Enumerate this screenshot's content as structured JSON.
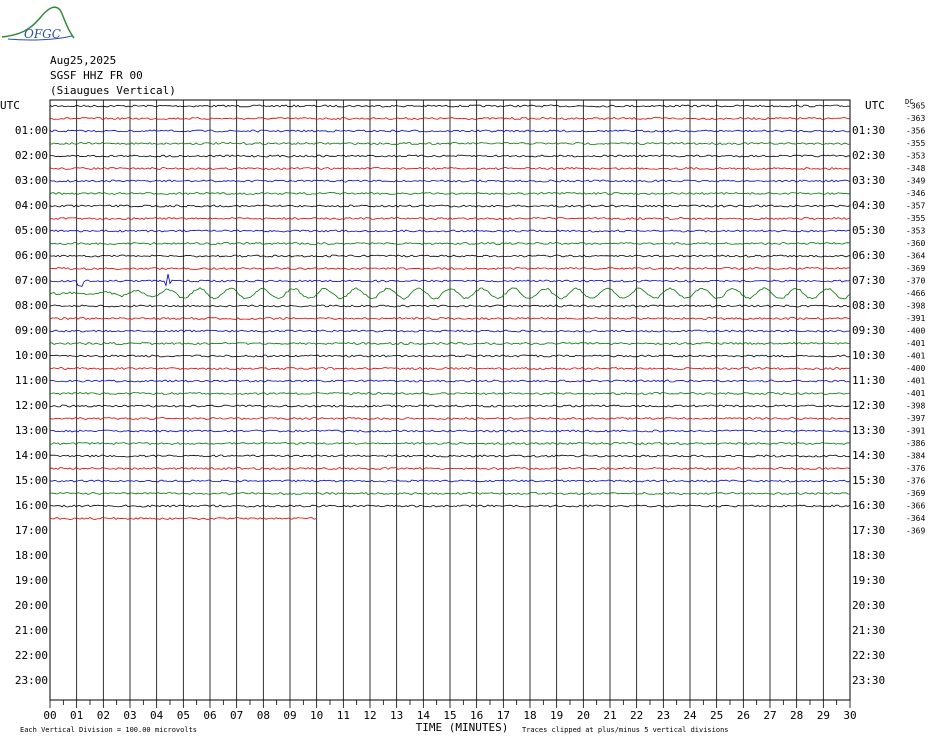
{
  "logo": "OFGC",
  "header": {
    "date": "Aug25,2025",
    "station": "SGSF HHZ FR 00",
    "location": "(Siaugues Vertical)"
  },
  "axes": {
    "left_title": "UTC",
    "right_title": "UTC",
    "offset_title": "DC",
    "left_labels": [
      "01:00",
      "02:00",
      "03:00",
      "04:00",
      "05:00",
      "06:00",
      "07:00",
      "08:00",
      "09:00",
      "10:00",
      "11:00",
      "12:00",
      "13:00",
      "14:00",
      "15:00",
      "16:00",
      "17:00",
      "18:00",
      "19:00",
      "20:00",
      "21:00",
      "22:00",
      "23:00"
    ],
    "right_labels": [
      "01:30",
      "02:30",
      "03:30",
      "04:30",
      "05:30",
      "06:30",
      "07:30",
      "08:30",
      "09:30",
      "10:30",
      "11:30",
      "12:30",
      "13:30",
      "14:30",
      "15:30",
      "16:30",
      "17:30",
      "18:30",
      "19:30",
      "20:30",
      "21:30",
      "22:30",
      "23:30"
    ],
    "x_ticks": [
      "00",
      "01",
      "02",
      "03",
      "04",
      "05",
      "06",
      "07",
      "08",
      "09",
      "10",
      "11",
      "12",
      "13",
      "14",
      "15",
      "16",
      "17",
      "18",
      "19",
      "20",
      "21",
      "22",
      "23",
      "24",
      "25",
      "26",
      "27",
      "28",
      "29",
      "30"
    ],
    "x_title": "TIME (MINUTES)"
  },
  "offsets": [
    "-365",
    "-363",
    "-356",
    "-355",
    "-353",
    "-348",
    "-349",
    "-346",
    "-357",
    "-355",
    "-353",
    "-360",
    "-364",
    "-369",
    "-370",
    "-466",
    "-398",
    "-391",
    "-400",
    "-401",
    "-401",
    "-400",
    "-401",
    "-401",
    "-398",
    "-397",
    "-391",
    "-386",
    "-384",
    "-376",
    "-376",
    "-369",
    "-366",
    "-364",
    "-369"
  ],
  "footer": {
    "scale": "Each Vertical Division =  100.00 microvolts",
    "clip": "Traces clipped at plus/minus 5 vertical divisions"
  }
}
